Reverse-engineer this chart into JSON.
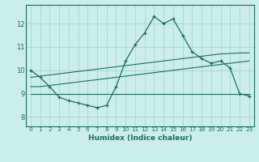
{
  "xlabel": "Humidex (Indice chaleur)",
  "ylabel": "",
  "x_ticks": [
    0,
    1,
    2,
    3,
    4,
    5,
    6,
    7,
    8,
    9,
    10,
    11,
    12,
    13,
    14,
    15,
    16,
    17,
    18,
    19,
    20,
    21,
    22,
    23
  ],
  "y_ticks": [
    8,
    9,
    10,
    11,
    12
  ],
  "ylim": [
    7.6,
    12.8
  ],
  "xlim": [
    -0.5,
    23.5
  ],
  "bg_color": "#cceee8",
  "grid_color": "#aad4ce",
  "line_color": "#1a6e64",
  "main_line_x": [
    0,
    1,
    2,
    3,
    4,
    5,
    6,
    7,
    8,
    9,
    10,
    11,
    12,
    13,
    14,
    15,
    16,
    17,
    18,
    19,
    20,
    21,
    22,
    23
  ],
  "main_line_y": [
    10.0,
    9.7,
    9.3,
    8.85,
    8.7,
    8.6,
    8.5,
    8.4,
    8.5,
    9.3,
    10.4,
    11.1,
    11.6,
    12.3,
    12.0,
    12.2,
    11.5,
    10.8,
    10.5,
    10.3,
    10.4,
    10.1,
    9.0,
    8.9
  ],
  "flat_line_x": [
    0,
    2,
    3,
    4,
    5,
    6,
    7,
    8,
    9,
    10,
    11,
    12,
    13,
    14,
    15,
    16,
    17,
    18,
    19,
    20,
    21,
    22,
    23
  ],
  "flat_line_y": [
    9.0,
    9.0,
    9.0,
    9.0,
    9.0,
    9.0,
    9.0,
    9.0,
    9.0,
    9.0,
    9.0,
    9.0,
    9.0,
    9.0,
    9.0,
    9.0,
    9.0,
    9.0,
    9.0,
    9.0,
    9.0,
    9.0,
    9.0
  ],
  "trend_low_x": [
    0,
    1,
    2,
    3,
    4,
    5,
    6,
    7,
    8,
    9,
    10,
    11,
    12,
    13,
    14,
    15,
    16,
    17,
    18,
    19,
    20,
    21,
    22,
    23
  ],
  "trend_low_y": [
    9.3,
    9.3,
    9.35,
    9.4,
    9.45,
    9.5,
    9.55,
    9.6,
    9.65,
    9.7,
    9.75,
    9.8,
    9.85,
    9.9,
    9.95,
    10.0,
    10.05,
    10.1,
    10.15,
    10.2,
    10.25,
    10.3,
    10.35,
    10.4
  ],
  "trend_high_x": [
    0,
    1,
    2,
    3,
    4,
    5,
    6,
    7,
    8,
    9,
    10,
    11,
    12,
    13,
    14,
    15,
    16,
    17,
    18,
    19,
    20,
    21,
    22,
    23
  ],
  "trend_high_y": [
    9.7,
    9.75,
    9.8,
    9.85,
    9.9,
    9.95,
    10.0,
    10.05,
    10.1,
    10.15,
    10.2,
    10.25,
    10.3,
    10.35,
    10.4,
    10.45,
    10.5,
    10.55,
    10.6,
    10.65,
    10.7,
    10.72,
    10.74,
    10.75
  ]
}
